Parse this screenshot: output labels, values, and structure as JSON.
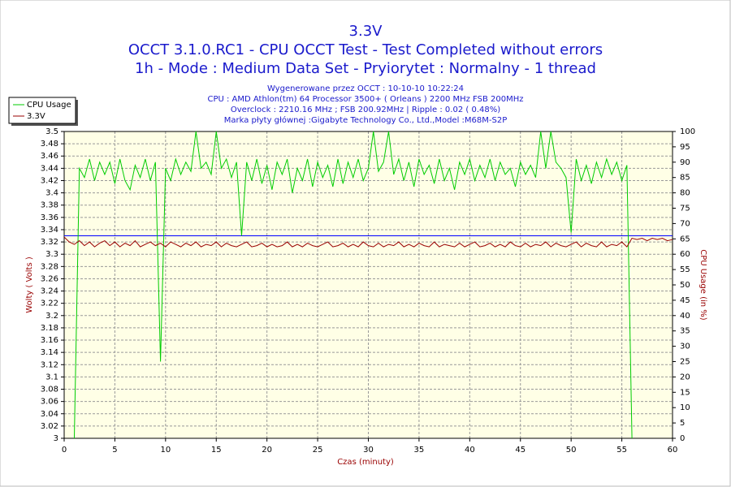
{
  "chart_data": {
    "type": "line",
    "title": "3.3V",
    "subtitle": [
      "OCCT 3.1.0.RC1 - CPU OCCT Test - Test Completed without errors",
      "1h - Mode : Medium Data Set - Pryiorytet : Normalny - 1 thread"
    ],
    "info": [
      "Wygenerowane przez OCCT : 10-10-10 10:22:24",
      "CPU : AMD Athlon(tm) 64 Processor 3500+ ( Orleans ) 2200 MHz FSB 200MHz",
      "Overclock : 2210.16 MHz ; FSB 200.92MHz | Ripple : 0.02 ( 0.48%)",
      "Marka płyty głównej :Gigabyte Technology Co., Ltd.,Model :M68M-S2P"
    ],
    "x_label": "Czas (minuty)",
    "y_label": "Wolty ( Volts )",
    "y2_label": "CPU Usage (in %)",
    "x": [
      0,
      0.5,
      1,
      1.5,
      2,
      2.5,
      3,
      3.5,
      4,
      4.5,
      5,
      5.5,
      6,
      6.5,
      7,
      7.5,
      8,
      8.5,
      9,
      9.5,
      10,
      10.5,
      11,
      11.5,
      12,
      12.5,
      13,
      13.5,
      14,
      14.5,
      15,
      15.5,
      16,
      16.5,
      17,
      17.5,
      18,
      18.5,
      19,
      19.5,
      20,
      20.5,
      21,
      21.5,
      22,
      22.5,
      23,
      23.5,
      24,
      24.5,
      25,
      25.5,
      26,
      26.5,
      27,
      27.5,
      28,
      28.5,
      29,
      29.5,
      30,
      30.5,
      31,
      31.5,
      32,
      32.5,
      33,
      33.5,
      34,
      34.5,
      35,
      35.5,
      36,
      36.5,
      37,
      37.5,
      38,
      38.5,
      39,
      39.5,
      40,
      40.5,
      41,
      41.5,
      42,
      42.5,
      43,
      43.5,
      44,
      44.5,
      45,
      45.5,
      46,
      46.5,
      47,
      47.5,
      48,
      48.5,
      49,
      49.5,
      50,
      50.5,
      51,
      51.5,
      52,
      52.5,
      53,
      53.5,
      54,
      54.5,
      55,
      55.5,
      56,
      56.5,
      57,
      57.5,
      58,
      58.5,
      59,
      59.5,
      60
    ],
    "series": [
      {
        "name": "CPU Usage",
        "color": "#00cc00",
        "axis": "y2",
        "values": [
          null,
          null,
          0,
          88,
          85,
          91,
          84,
          90,
          86,
          90,
          83,
          91,
          84,
          81,
          89,
          85,
          91,
          84,
          90,
          25,
          88,
          84,
          91,
          86,
          90,
          87,
          100,
          88,
          90,
          86,
          100,
          88,
          91,
          85,
          90,
          66,
          90,
          84,
          91,
          83,
          89,
          81,
          90,
          86,
          91,
          80,
          88,
          84,
          91,
          82,
          90,
          85,
          89,
          82,
          91,
          83,
          90,
          85,
          91,
          84,
          88,
          100,
          87,
          90,
          100,
          86,
          91,
          84,
          90,
          82,
          91,
          86,
          89,
          83,
          91,
          84,
          88,
          81,
          90,
          86,
          91,
          84,
          89,
          85,
          91,
          84,
          90,
          86,
          88,
          82,
          90,
          86,
          89,
          85,
          100,
          88,
          100,
          90,
          88,
          85,
          67,
          91,
          84,
          89,
          83,
          90,
          85,
          91,
          86,
          90,
          84,
          89,
          0,
          null,
          null,
          null,
          null,
          null,
          null,
          null,
          null
        ]
      },
      {
        "name": "3.3V",
        "color": "#990000",
        "values": [
          3.328,
          3.32,
          3.316,
          3.322,
          3.314,
          3.32,
          3.312,
          3.318,
          3.322,
          3.314,
          3.32,
          3.312,
          3.318,
          3.314,
          3.322,
          3.312,
          3.316,
          3.32,
          3.314,
          3.318,
          3.312,
          3.32,
          3.316,
          3.312,
          3.318,
          3.314,
          3.32,
          3.312,
          3.316,
          3.314,
          3.32,
          3.312,
          3.318,
          3.314,
          3.312,
          3.316,
          3.32,
          3.312,
          3.314,
          3.318,
          3.312,
          3.316,
          3.312,
          3.314,
          3.32,
          3.312,
          3.316,
          3.312,
          3.318,
          3.314,
          3.312,
          3.316,
          3.32,
          3.312,
          3.314,
          3.318,
          3.312,
          3.316,
          3.312,
          3.32,
          3.314,
          3.312,
          3.318,
          3.312,
          3.316,
          3.314,
          3.32,
          3.312,
          3.316,
          3.312,
          3.318,
          3.314,
          3.312,
          3.32,
          3.312,
          3.316,
          3.314,
          3.312,
          3.318,
          3.312,
          3.316,
          3.32,
          3.312,
          3.314,
          3.318,
          3.312,
          3.316,
          3.312,
          3.32,
          3.314,
          3.312,
          3.318,
          3.312,
          3.316,
          3.314,
          3.32,
          3.312,
          3.318,
          3.314,
          3.312,
          3.316,
          3.32,
          3.312,
          3.318,
          3.314,
          3.312,
          3.32,
          3.312,
          3.316,
          3.314,
          3.32,
          3.312,
          3.326,
          3.324,
          3.326,
          3.322,
          3.326,
          3.324,
          3.326,
          3.322,
          3.324
        ]
      }
    ],
    "hline": {
      "value": 3.33,
      "color": "#0000ff"
    },
    "xlim": [
      0,
      60
    ],
    "xticks": [
      0,
      5,
      10,
      15,
      20,
      25,
      30,
      35,
      40,
      45,
      50,
      55,
      60
    ],
    "ylim": [
      3,
      3.5
    ],
    "yticks": [
      3,
      3.02,
      3.04,
      3.06,
      3.08,
      3.1,
      3.12,
      3.14,
      3.16,
      3.18,
      3.2,
      3.22,
      3.24,
      3.26,
      3.28,
      3.3,
      3.32,
      3.34,
      3.36,
      3.38,
      3.4,
      3.42,
      3.44,
      3.46,
      3.48,
      3.5
    ],
    "y2lim": [
      0,
      100
    ],
    "y2ticks": [
      0,
      5,
      10,
      15,
      20,
      25,
      30,
      35,
      40,
      45,
      50,
      55,
      60,
      65,
      70,
      75,
      80,
      85,
      90,
      95,
      100
    ],
    "grid": true,
    "legend": "top-left"
  }
}
